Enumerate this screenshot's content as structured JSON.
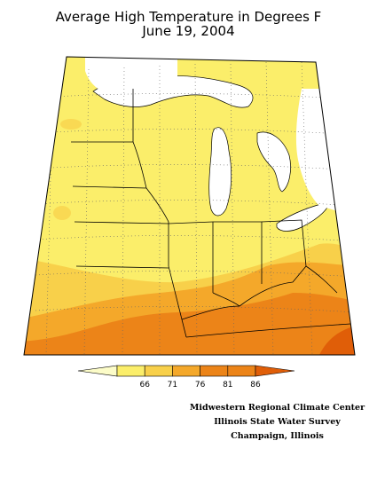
{
  "title": {
    "line1": "Average High Temperature in Degrees F",
    "line2": "June 19, 2004"
  },
  "legend": {
    "ticks": [
      "66",
      "71",
      "76",
      "81",
      "86"
    ],
    "colors": [
      "#fcfcc8",
      "#fbee6a",
      "#f8d04a",
      "#f4a82a",
      "#ec8418",
      "#e05e08"
    ]
  },
  "credit": {
    "line1": "Midwestern Regional Climate Center",
    "line2": "Illinois State Water Survey",
    "line3": "Champaign, Illinois"
  },
  "map": {
    "colors": {
      "band_66_71": "#fbee6a",
      "band_71_76": "#f8d04a",
      "band_76_81": "#f4a82a",
      "band_81_86": "#ec8418",
      "band_86_plus": "#e05e08",
      "lake": "#ffffff",
      "border": "#000000"
    }
  }
}
